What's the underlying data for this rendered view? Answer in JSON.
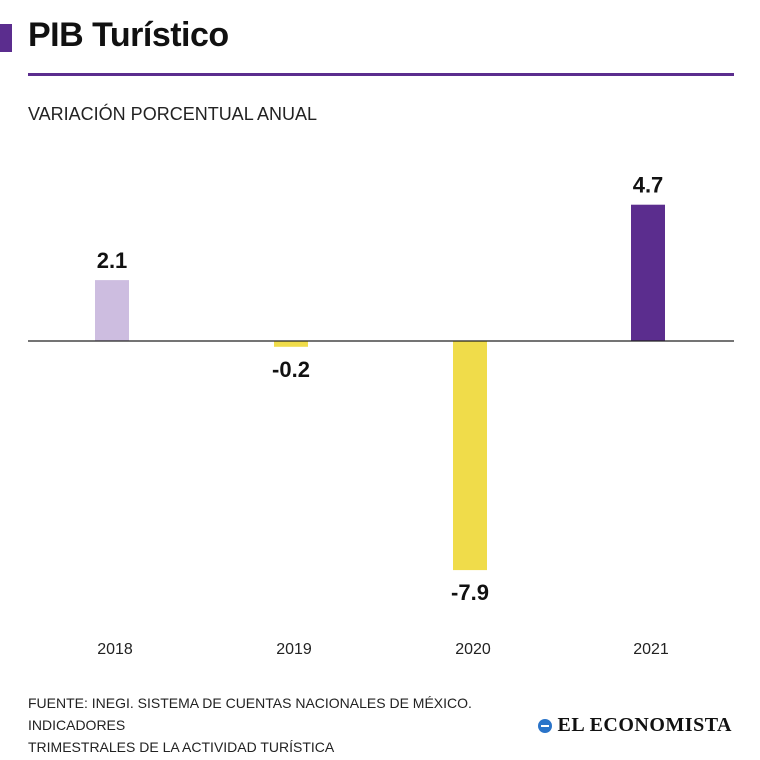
{
  "header": {
    "title": "PIB Turístico",
    "subtitle": "VARIACIÓN PORCENTUAL ANUAL",
    "accent_color": "#5b2d8e"
  },
  "chart_data": {
    "type": "bar",
    "title": "PIB Turístico",
    "subtitle": "VARIACIÓN PORCENTUAL ANUAL",
    "categories": [
      "2018",
      "2019",
      "2020",
      "2021"
    ],
    "values": [
      2.1,
      -0.2,
      -7.9,
      4.7
    ],
    "data_labels": [
      "2.1",
      "-0.2",
      "-7.9",
      "4.7"
    ],
    "bar_colors": [
      "#cdbde0",
      "#f0dc4a",
      "#f0dc4a",
      "#5b2d8e"
    ],
    "xlabel": "",
    "ylabel": "",
    "ylim": [
      -7.9,
      4.7
    ],
    "grid": false,
    "legend": "none"
  },
  "footer": {
    "source_line1": "FUENTE: INEGI. SISTEMA DE CUENTAS NACIONALES DE MÉXICO. INDICADORES",
    "source_line2": "TRIMESTRALES DE LA ACTIVIDAD TURÍSTICA",
    "brand": "EL ECONOMISTA",
    "brand_icon": "globe-icon"
  }
}
